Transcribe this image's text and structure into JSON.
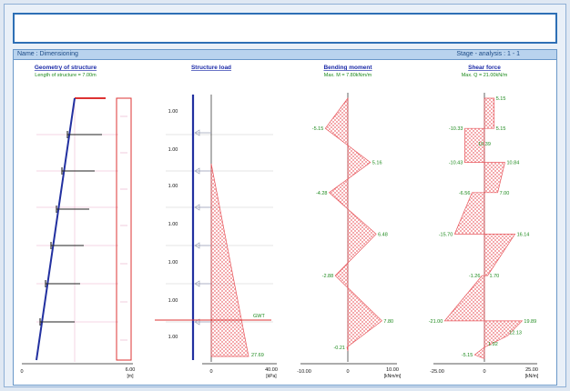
{
  "header": {
    "name": "Name : Dimensioning",
    "stage": "Stage - analysis : 1 - 1"
  },
  "geometry": {
    "title": "Geometry of structure",
    "subtitle": "Length of structure = 7.00m",
    "axis_ticks": [
      "0",
      "6.00"
    ],
    "axis_unit": "[m]"
  },
  "load": {
    "title": "Structure load",
    "segments": [
      "1.00",
      "1.00",
      "1.00",
      "1.00",
      "1.00",
      "1.00",
      "1.00"
    ],
    "axis_ticks": [
      "0",
      "40.00"
    ],
    "axis_unit": "[kPa]",
    "water_label": "GWT",
    "bottom_label": "27.69"
  },
  "moment": {
    "title": "Bending moment",
    "subtitle": "Max. M = 7.80kNm/m",
    "axis_ticks": [
      "-10.00",
      "0",
      "10.00"
    ],
    "axis_unit": "[kNm/m]"
  },
  "shear": {
    "title": "Shear force",
    "subtitle": "Max. Q = 21.00kN/m",
    "axis_ticks": [
      "-25.00",
      "0",
      "25.00"
    ],
    "axis_unit": "[kN/m]"
  },
  "chart_data": [
    {
      "type": "area",
      "title": "Bending moment",
      "xlim": [
        -10,
        10
      ],
      "points": [
        {
          "y": 0.0,
          "x": 0
        },
        {
          "y": 0.8,
          "x": -5.15
        },
        {
          "y": 1.7,
          "x": 5.16
        },
        {
          "y": 2.5,
          "x": -4.28
        },
        {
          "y": 3.6,
          "x": 6.48
        },
        {
          "y": 4.7,
          "x": -2.88
        },
        {
          "y": 5.9,
          "x": 7.8
        },
        {
          "y": 6.6,
          "x": -0.21
        },
        {
          "y": 6.7,
          "x": 0
        }
      ],
      "labels": [
        {
          "text": "-5.15",
          "x": -5.15,
          "y": 0.8,
          "side": "left"
        },
        {
          "text": "5.16",
          "x": 5.16,
          "y": 1.7,
          "side": "right"
        },
        {
          "text": "-4.28",
          "x": -4.28,
          "y": 2.5,
          "side": "left"
        },
        {
          "text": "6.48",
          "x": 6.48,
          "y": 3.6,
          "side": "right"
        },
        {
          "text": "-2.88",
          "x": -2.88,
          "y": 4.7,
          "side": "left"
        },
        {
          "text": "7.80",
          "x": 7.8,
          "y": 5.9,
          "side": "right"
        },
        {
          "text": "-0.21",
          "x": -0.21,
          "y": 6.6,
          "side": "left"
        }
      ]
    },
    {
      "type": "area",
      "title": "Shear force",
      "xlim": [
        -25,
        25
      ],
      "points": [
        {
          "y": 0.0,
          "x": 0
        },
        {
          "y": 0.0,
          "x": 5.15
        },
        {
          "y": 0.8,
          "x": 5.15
        },
        {
          "y": 0.8,
          "x": -10.33
        },
        {
          "y": 1.7,
          "x": -10.43
        },
        {
          "y": 1.7,
          "x": 10.84
        },
        {
          "y": 2.5,
          "x": 7.0
        },
        {
          "y": 2.5,
          "x": -6.56
        },
        {
          "y": 3.6,
          "x": -15.7
        },
        {
          "y": 3.6,
          "x": 16.14
        },
        {
          "y": 4.7,
          "x": 1.7
        },
        {
          "y": 4.7,
          "x": -1.26
        },
        {
          "y": 5.9,
          "x": -21.0
        },
        {
          "y": 5.9,
          "x": 19.89
        },
        {
          "y": 6.3,
          "x": 12.13
        },
        {
          "y": 6.6,
          "x": 0
        },
        {
          "y": 6.8,
          "x": -5.15
        },
        {
          "y": 6.9,
          "x": 0
        }
      ],
      "labels": [
        {
          "text": "5.15",
          "x": 5.15,
          "y": 0.0,
          "side": "right"
        },
        {
          "text": "-10.33",
          "x": -10.33,
          "y": 0.8,
          "side": "left"
        },
        {
          "text": "5.15",
          "x": 5.15,
          "y": 0.8,
          "side": "right"
        },
        {
          "text": "10.39",
          "x": 0,
          "y": 1.2,
          "side": "center"
        },
        {
          "text": "-10.43",
          "x": -10.43,
          "y": 1.7,
          "side": "left"
        },
        {
          "text": "10.84",
          "x": 10.84,
          "y": 1.7,
          "side": "right"
        },
        {
          "text": "-6.56",
          "x": -6.56,
          "y": 2.5,
          "side": "left"
        },
        {
          "text": "7.00",
          "x": 7.0,
          "y": 2.5,
          "side": "right"
        },
        {
          "text": "-15.70",
          "x": -15.7,
          "y": 3.6,
          "side": "left"
        },
        {
          "text": "16.14",
          "x": 16.14,
          "y": 3.6,
          "side": "right"
        },
        {
          "text": "-1.26",
          "x": -1.26,
          "y": 4.7,
          "side": "left"
        },
        {
          "text": "1.70",
          "x": 1.7,
          "y": 4.7,
          "side": "right"
        },
        {
          "text": "-21.00",
          "x": -21.0,
          "y": 5.9,
          "side": "left"
        },
        {
          "text": "19.89",
          "x": 19.89,
          "y": 5.9,
          "side": "right"
        },
        {
          "text": "12.13",
          "x": 12.13,
          "y": 6.2,
          "side": "right"
        },
        {
          "text": "1.92",
          "x": 1.0,
          "y": 6.5,
          "side": "right"
        },
        {
          "text": "-5.15",
          "x": -5.15,
          "y": 6.8,
          "side": "left"
        }
      ]
    }
  ]
}
